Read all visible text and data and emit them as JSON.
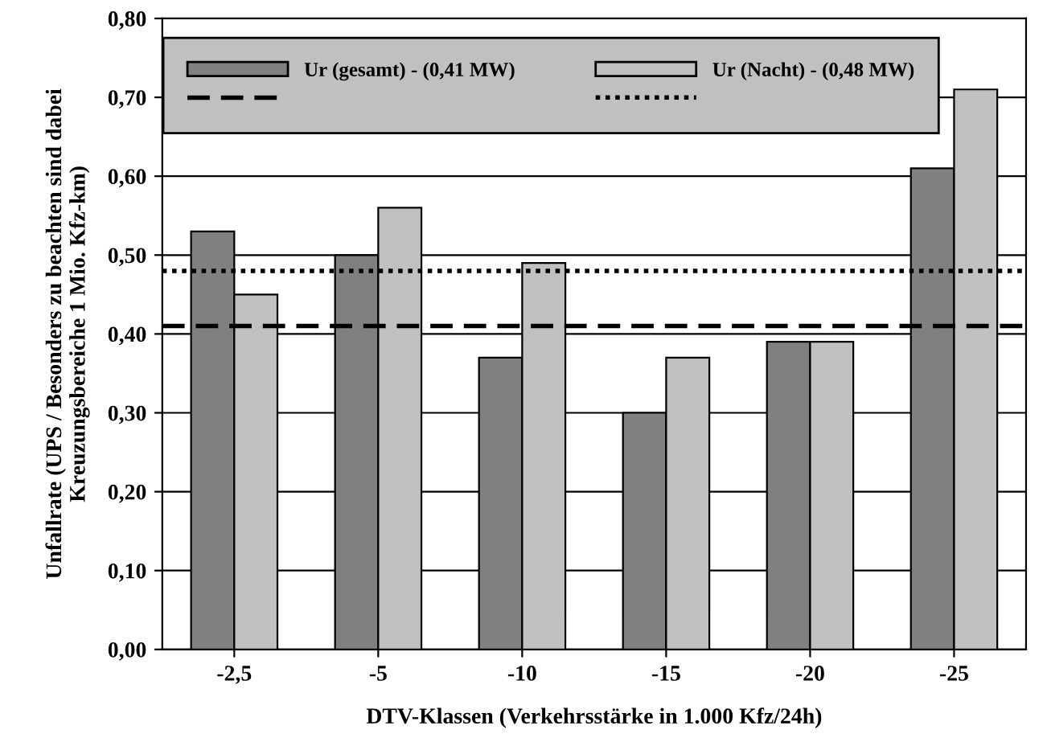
{
  "chart_data": {
    "type": "bar",
    "xlabel": "DTV-Klassen (Verkehrsstärke in 1.000 Kfz/24h)",
    "ylabel": "Unfallrate (UPS / Besonders zu beachten sind dabei\nKreuzungsbereiche 1 Mio. Kfz-km)",
    "categories": [
      "-2,5",
      "-5",
      "-10",
      "-15",
      "-20",
      "-25"
    ],
    "series": [
      {
        "name": "Ur (gesamt) - (0,41 MW)",
        "color": "#808080",
        "values": [
          0.53,
          0.5,
          0.37,
          0.3,
          0.39,
          0.61
        ]
      },
      {
        "name": "Ur (Nacht) - (0,48 MW)",
        "color": "#c0c0c0",
        "values": [
          0.45,
          0.56,
          0.49,
          0.37,
          0.39,
          0.71
        ]
      }
    ],
    "ref_lines": [
      {
        "axis": "y",
        "value": 0.41,
        "color": "#000000",
        "line_style": "dashed"
      },
      {
        "axis": "y",
        "value": 0.48,
        "color": "#000000",
        "line_style": "dotted"
      }
    ],
    "ylim": [
      0,
      0.8
    ],
    "yticks": [
      {
        "value": 0,
        "label": "0,00"
      },
      {
        "value": 0.1,
        "label": "0,10"
      },
      {
        "value": 0.2,
        "label": "0,20"
      },
      {
        "value": 0.3,
        "label": "0,30"
      },
      {
        "value": 0.4,
        "label": "0,40"
      },
      {
        "value": 0.5,
        "label": "0,50"
      },
      {
        "value": 0.6,
        "label": "0,60"
      },
      {
        "value": 0.7,
        "label": "0,70"
      },
      {
        "value": 0.8,
        "label": "0,80"
      }
    ],
    "grid": "y",
    "legend": "top"
  }
}
